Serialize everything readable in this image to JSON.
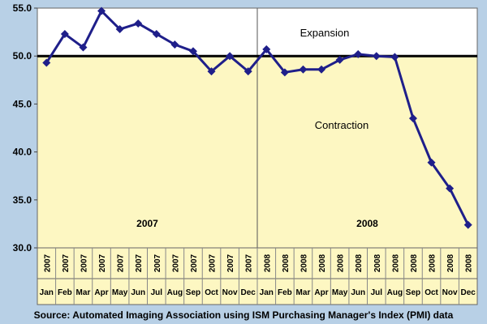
{
  "chart_data": {
    "type": "line",
    "ylim": [
      30,
      55
    ],
    "yticks": [
      "30.0",
      "35.0",
      "40.0",
      "45.0",
      "50.0",
      "55.0"
    ],
    "reference_line": 50,
    "categories": [
      {
        "month": "Jan",
        "year": "2007"
      },
      {
        "month": "Feb",
        "year": "2007"
      },
      {
        "month": "Mar",
        "year": "2007"
      },
      {
        "month": "Apr",
        "year": "2007"
      },
      {
        "month": "May",
        "year": "2007"
      },
      {
        "month": "Jun",
        "year": "2007"
      },
      {
        "month": "Jul",
        "year": "2007"
      },
      {
        "month": "Aug",
        "year": "2007"
      },
      {
        "month": "Sep",
        "year": "2007"
      },
      {
        "month": "Oct",
        "year": "2007"
      },
      {
        "month": "Nov",
        "year": "2007"
      },
      {
        "month": "Dec",
        "year": "2007"
      },
      {
        "month": "Jan",
        "year": "2008"
      },
      {
        "month": "Feb",
        "year": "2008"
      },
      {
        "month": "Mar",
        "year": "2008"
      },
      {
        "month": "Apr",
        "year": "2008"
      },
      {
        "month": "May",
        "year": "2008"
      },
      {
        "month": "Jun",
        "year": "2008"
      },
      {
        "month": "Jul",
        "year": "2008"
      },
      {
        "month": "Aug",
        "year": "2008"
      },
      {
        "month": "Sep",
        "year": "2008"
      },
      {
        "month": "Oct",
        "year": "2008"
      },
      {
        "month": "Nov",
        "year": "2008"
      },
      {
        "month": "Dec",
        "year": "2008"
      }
    ],
    "values": [
      49.3,
      52.3,
      50.9,
      54.7,
      52.8,
      53.4,
      52.3,
      51.2,
      50.5,
      48.4,
      50.0,
      48.4,
      50.7,
      48.3,
      48.6,
      48.6,
      49.6,
      50.2,
      50.0,
      49.9,
      43.5,
      38.9,
      36.2,
      32.4
    ],
    "region_labels": {
      "above": "Expansion",
      "below": "Contraction"
    },
    "year_labels": [
      "2007",
      "2008"
    ],
    "grid": false,
    "legend": "none"
  },
  "colors": {
    "background": "#b8d0e6",
    "expansion_fill": "#ffffff",
    "contraction_fill": "#fdf7c2",
    "line": "#1f1f8a",
    "axis_cells": "#fdf7c2"
  },
  "source": "Source: Automated Imaging Association using ISM Purchasing Manager's Index (PMI) data"
}
